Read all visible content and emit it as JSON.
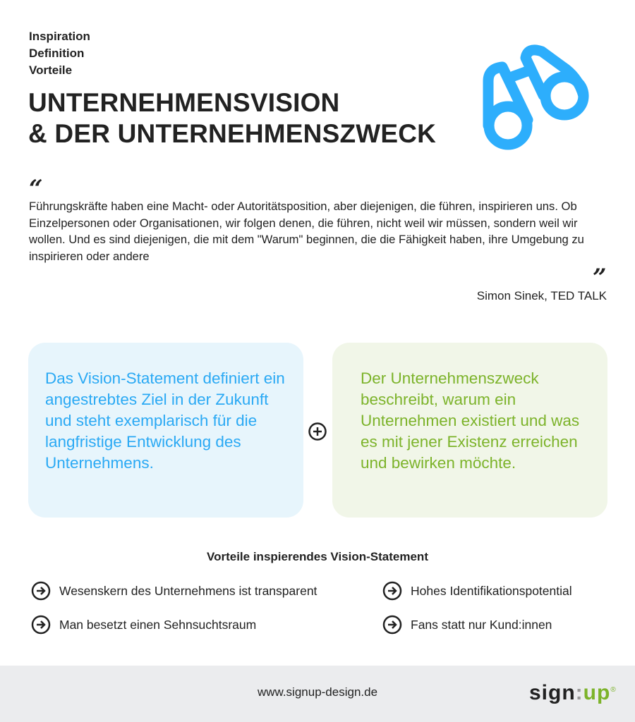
{
  "nav": [
    "Inspiration",
    "Definition",
    "Vorteile"
  ],
  "title": [
    "UNTERNEHMENSVISION",
    "& DER UNTERNEHMENSZWECK"
  ],
  "icon": "binoculars-icon",
  "quote": {
    "open": "“",
    "text": "Führungskräfte haben eine Macht- oder Autoritätsposition, aber diejenigen, die führen, inspirieren uns. Ob Einzelpersonen oder Organisationen, wir folgen denen, die führen, nicht weil wir müssen, sondern weil wir wollen. Und es sind diejenigen, die mit dem \"Warum\" beginnen, die die Fähigkeit haben, ihre Umgebung zu inspirieren oder andere",
    "close": "”",
    "author": "Simon Sinek, TED TALK"
  },
  "boxes": [
    {
      "text": "Das Vision-Statement definiert ein angestrebtes Ziel in der Zukunft und steht exemplarisch für die langfristige Entwicklung des Unternehmens."
    },
    {
      "text": "Der Unternehmenszweck beschreibt, warum ein Unternehmen existiert und was es mit jener Existenz erreichen und bewirken möchte."
    }
  ],
  "benefits": {
    "title": "Vorteile inspierendes Vision-Statement",
    "items": [
      "Wesenskern des Unternehmens ist transparent",
      "Hohes Identifikationspotential",
      "Man besetzt einen Sehnsuchtsraum",
      "Fans statt nur Kund:innen"
    ]
  },
  "footer": {
    "url": "www.signup-design.de",
    "logo": "sign:up"
  },
  "colors": {
    "blue": "#2aa9f4",
    "green": "#7cb32a"
  }
}
